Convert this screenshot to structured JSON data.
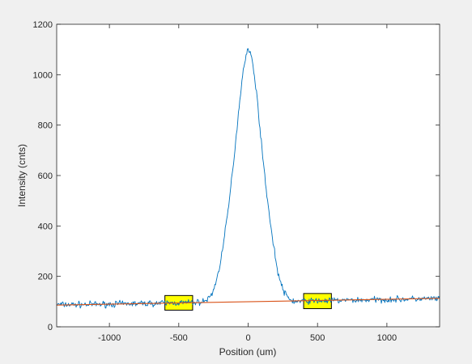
{
  "chart_data": {
    "type": "line",
    "title": "",
    "xlabel": "Position (um)",
    "ylabel": "Intensity (cnts)",
    "xlim": [
      -1380,
      1380
    ],
    "ylim": [
      0,
      1200
    ],
    "xticks": [
      -1000,
      -500,
      0,
      500,
      1000
    ],
    "xtick_labels": [
      "-1000",
      "-500",
      "0",
      "500",
      "1000"
    ],
    "yticks": [
      0,
      200,
      400,
      600,
      800,
      1000,
      1200
    ],
    "ytick_labels": [
      "0",
      "200",
      "400",
      "600",
      "800",
      "1000",
      "1200"
    ],
    "grid": false,
    "legend": "none",
    "series": [
      {
        "name": "",
        "color": "#0072bd",
        "style": "noisy",
        "x": [
          -1380,
          -1200,
          -1000,
          -800,
          -600,
          -500,
          -400,
          -340,
          -300,
          -260,
          -220,
          -180,
          -140,
          -100,
          -80,
          -60,
          -40,
          -20,
          0,
          20,
          40,
          60,
          80,
          100,
          140,
          180,
          220,
          260,
          300,
          340,
          400,
          600,
          800,
          1000,
          1200,
          1380
        ],
        "y": [
          88,
          88,
          90,
          92,
          94,
          95,
          96,
          98,
          105,
          130,
          200,
          320,
          480,
          680,
          790,
          900,
          1000,
          1070,
          1100,
          1080,
          1020,
          930,
          820,
          700,
          500,
          330,
          200,
          135,
          108,
          100,
          102,
          104,
          106,
          108,
          110,
          112
        ]
      },
      {
        "name": "",
        "color": "#d95319",
        "style": "line",
        "x": [
          -1380,
          1380
        ],
        "y": [
          86,
          113
        ]
      }
    ],
    "annotations": [
      {
        "type": "rect",
        "x0": -600,
        "x1": -400,
        "y0": 66,
        "y1": 124,
        "fill": "#ffff00",
        "edge": "#000000"
      },
      {
        "type": "rect",
        "x0": 400,
        "x1": 600,
        "y0": 72,
        "y1": 132,
        "fill": "#ffff00",
        "edge": "#000000"
      }
    ]
  }
}
